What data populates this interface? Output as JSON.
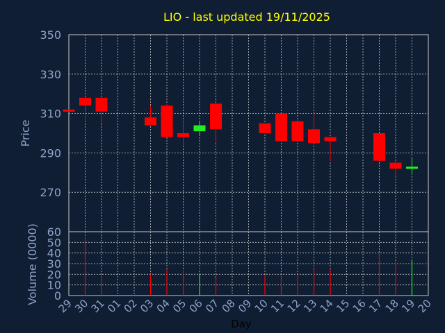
{
  "chart_data": [
    {
      "type": "candlestick",
      "title": "LIO - last updated 19/11/2025",
      "ylabel": "Price",
      "ylim": [
        250,
        350
      ],
      "yticks": [
        350,
        330,
        310,
        290,
        270
      ],
      "grid": true,
      "colors": {
        "up": "#22ee22",
        "down": "#ff0000"
      },
      "categories": [
        "29",
        "30",
        "31",
        "01",
        "02",
        "03",
        "04",
        "05",
        "06",
        "07",
        "08",
        "09",
        "10",
        "11",
        "12",
        "13",
        "14",
        "15",
        "16",
        "17",
        "18",
        "19",
        "20"
      ],
      "candles": [
        {
          "day": "29",
          "open": 312.0,
          "close": 311.5,
          "high": 312.0,
          "low": 311.5
        },
        {
          "day": "30",
          "open": 318,
          "close": 314,
          "high": 318,
          "low": 306
        },
        {
          "day": "31",
          "open": 318,
          "close": 311,
          "high": 318,
          "low": 305
        },
        {
          "day": "03",
          "open": 308,
          "close": 304,
          "high": 314,
          "low": 304
        },
        {
          "day": "04",
          "open": 314,
          "close": 298,
          "high": 315,
          "low": 298
        },
        {
          "day": "05",
          "open": 300,
          "close": 298,
          "high": 306,
          "low": 294
        },
        {
          "day": "06",
          "open": 301,
          "close": 304,
          "high": 306,
          "low": 299
        },
        {
          "day": "07",
          "open": 315,
          "close": 302,
          "high": 315,
          "low": 295
        },
        {
          "day": "10",
          "open": 305,
          "close": 300,
          "high": 305,
          "low": 300
        },
        {
          "day": "11",
          "open": 310,
          "close": 296,
          "high": 310,
          "low": 296
        },
        {
          "day": "12",
          "open": 306,
          "close": 296,
          "high": 306,
          "low": 296
        },
        {
          "day": "13",
          "open": 302,
          "close": 295,
          "high": 310,
          "low": 295
        },
        {
          "day": "14",
          "open": 298,
          "close": 296,
          "high": 298,
          "low": 286
        },
        {
          "day": "17",
          "open": 300,
          "close": 286,
          "high": 300,
          "low": 286
        },
        {
          "day": "18",
          "open": 285,
          "close": 282,
          "high": 285,
          "low": 278
        },
        {
          "day": "19",
          "open": 282,
          "close": 283,
          "high": 288,
          "low": 279
        }
      ]
    },
    {
      "type": "bar",
      "ylabel": "Volume (0000)",
      "xlabel": "Day",
      "ylim": [
        0,
        60
      ],
      "yticks": [
        60,
        50,
        40,
        30,
        20,
        10,
        0
      ],
      "grid": true,
      "categories": [
        "29",
        "30",
        "31",
        "01",
        "02",
        "03",
        "04",
        "05",
        "06",
        "07",
        "08",
        "09",
        "10",
        "11",
        "12",
        "13",
        "14",
        "15",
        "16",
        "17",
        "18",
        "19",
        "20"
      ],
      "bars": [
        {
          "day": "30",
          "value": 55,
          "color": "#ff0000"
        },
        {
          "day": "31",
          "value": 18,
          "color": "#ff0000"
        },
        {
          "day": "03",
          "value": 20,
          "color": "#ff0000"
        },
        {
          "day": "04",
          "value": 25,
          "color": "#ff0000"
        },
        {
          "day": "05",
          "value": 24,
          "color": "#ff0000"
        },
        {
          "day": "06",
          "value": 21,
          "color": "#22ee22"
        },
        {
          "day": "07",
          "value": 17,
          "color": "#ff0000"
        },
        {
          "day": "10",
          "value": 19,
          "color": "#ff0000"
        },
        {
          "day": "11",
          "value": 18,
          "color": "#ff0000"
        },
        {
          "day": "12",
          "value": 19,
          "color": "#ff0000"
        },
        {
          "day": "13",
          "value": 25,
          "color": "#ff0000"
        },
        {
          "day": "14",
          "value": 25,
          "color": "#ff0000"
        },
        {
          "day": "17",
          "value": 39,
          "color": "#ff0000"
        },
        {
          "day": "18",
          "value": 32,
          "color": "#ff0000"
        },
        {
          "day": "19",
          "value": 33,
          "color": "#22ee22"
        }
      ]
    }
  ]
}
